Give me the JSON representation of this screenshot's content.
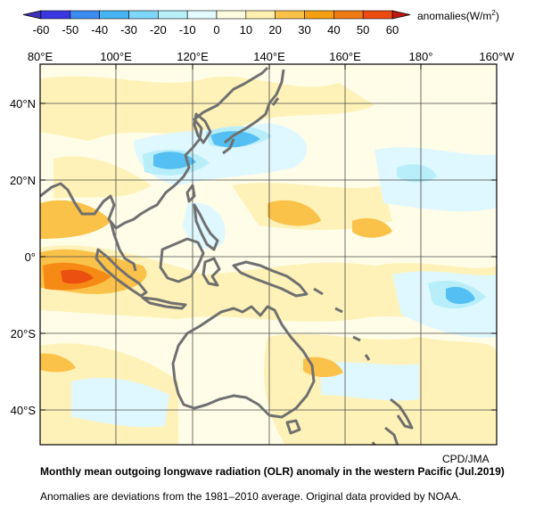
{
  "colorbar": {
    "ticks": [
      "-60",
      "-50",
      "-40",
      "-30",
      "-20",
      "-10",
      "0",
      "10",
      "20",
      "30",
      "40",
      "50",
      "60"
    ],
    "colors": [
      "#3a36e0",
      "#3a8cf0",
      "#48b4f4",
      "#7ed6f8",
      "#b8f0fa",
      "#e4fbff",
      "#fffde0",
      "#fff0b0",
      "#fbc24a",
      "#f5a012",
      "#f07a14",
      "#ec4a10"
    ],
    "unit_prefix": "anomalies(W/m",
    "unit_sup": "2",
    "unit_suffix": ")"
  },
  "map": {
    "lon_labels": [
      "80°E",
      "100°E",
      "120°E",
      "140°E",
      "160°E",
      "180°",
      "160°W"
    ],
    "lat_labels": [
      "40°N",
      "20°N",
      "0°",
      "20°S",
      "40°S"
    ],
    "coast_color": "#707070"
  },
  "credit": "CPD/JMA",
  "caption": {
    "title": "Monthly mean outgoing longwave radiation (OLR) anomaly in the western Pacific (Jul.2019)",
    "note": "Anomalies are deviations from the 1981–2010 average. Original data provided by NOAA."
  }
}
